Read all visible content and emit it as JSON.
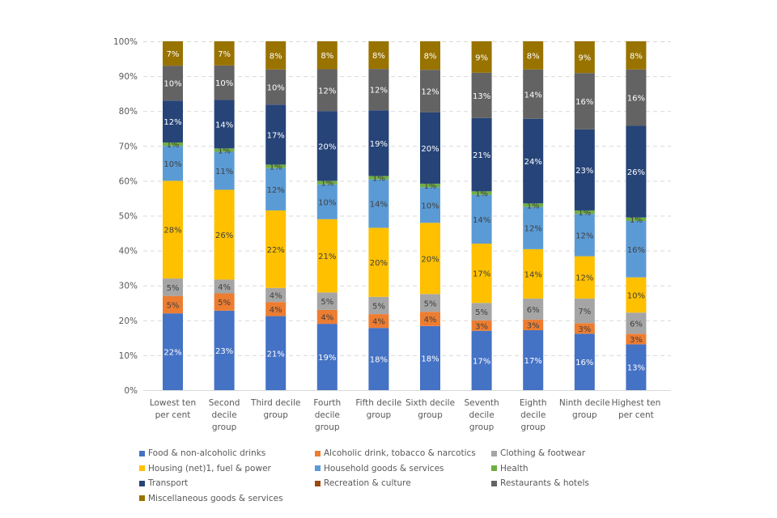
{
  "chart_data": {
    "type": "bar",
    "stacked": true,
    "percent_stacked": true,
    "title": "",
    "xlabel": "",
    "ylabel": "",
    "ylim": [
      0,
      100
    ],
    "yticks": [
      "0%",
      "10%",
      "20%",
      "30%",
      "40%",
      "50%",
      "60%",
      "70%",
      "80%",
      "90%",
      "100%"
    ],
    "grid": "horizontal dashed",
    "legend_position": "bottom",
    "categories": [
      [
        "Lowest ten",
        "per cent"
      ],
      [
        "Second",
        "decile",
        "group"
      ],
      [
        "Third decile",
        "group"
      ],
      [
        "Fourth",
        "decile",
        "group"
      ],
      [
        "Fifth decile",
        "group"
      ],
      [
        "Sixth decile",
        "group"
      ],
      [
        "Seventh",
        "decile",
        "group"
      ],
      [
        "Eighth",
        "decile",
        "group"
      ],
      [
        "Ninth decile",
        "group"
      ],
      [
        "Highest ten",
        "per cent"
      ]
    ],
    "series": [
      {
        "name": "Food & non-alcoholic drinks",
        "color": "#4472C4",
        "label_color": "#ffffff",
        "values": [
          22,
          23,
          21,
          19,
          18,
          18,
          17,
          17,
          16,
          13
        ]
      },
      {
        "name": "Alcoholic drink, tobacco & narcotics",
        "color": "#ED7D31",
        "label_color": "#404040",
        "values": [
          5,
          5,
          4,
          4,
          4,
          4,
          3,
          3,
          3,
          3
        ]
      },
      {
        "name": "Clothing & footwear",
        "color": "#A5A5A5",
        "label_color": "#404040",
        "values": [
          5,
          4,
          4,
          5,
          5,
          5,
          5,
          6,
          7,
          6
        ]
      },
      {
        "name": "Housing (net)1, fuel & power",
        "color": "#FFC000",
        "label_color": "#404040",
        "values": [
          28,
          26,
          22,
          21,
          20,
          20,
          17,
          14,
          12,
          10
        ]
      },
      {
        "name": "Household goods & services",
        "color": "#5B9BD5",
        "label_color": "#404040",
        "values": [
          10,
          11,
          12,
          10,
          14,
          10,
          14,
          12,
          12,
          16
        ]
      },
      {
        "name": "Health",
        "color": "#70AD47",
        "label_color": "#404040",
        "values": [
          1,
          1,
          1,
          1,
          1,
          1,
          1,
          1,
          1,
          1
        ]
      },
      {
        "name": "Transport",
        "color": "#264478",
        "label_color": "#ffffff",
        "values": [
          12,
          14,
          17,
          20,
          19,
          20,
          21,
          24,
          23,
          26
        ]
      },
      {
        "name": "Recreation & culture",
        "color": "#9E480E",
        "label_color": "#ffffff",
        "values": [
          null,
          null,
          null,
          null,
          null,
          null,
          null,
          null,
          null,
          null
        ]
      },
      {
        "name": "Restaurants & hotels",
        "color": "#636363",
        "label_color": "#ffffff",
        "values": [
          10,
          10,
          10,
          12,
          12,
          12,
          13,
          14,
          16,
          16
        ]
      },
      {
        "name": "Miscellaneous goods & services",
        "color": "#997300",
        "label_color": "#ffffff",
        "values": [
          7,
          7,
          8,
          8,
          8,
          8,
          9,
          8,
          9,
          8
        ]
      }
    ]
  },
  "legend": {
    "rows": [
      [
        "Food & non-alcoholic drinks",
        "Alcoholic drink, tobacco & narcotics",
        "Clothing & footwear"
      ],
      [
        "Housing (net)1, fuel & power",
        "Household goods & services",
        "Health"
      ],
      [
        "Transport",
        "Recreation & culture",
        "Restaurants & hotels"
      ],
      [
        "Miscellaneous goods & services"
      ]
    ]
  }
}
